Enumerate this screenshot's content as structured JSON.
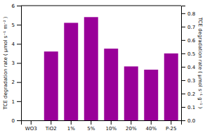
{
  "chart_data": {
    "type": "bar",
    "categories": [
      "WO3",
      "TiO2",
      "1%",
      "5%",
      "10%",
      "20%",
      "40%",
      "P-25"
    ],
    "values": [
      0.0,
      3.6,
      5.1,
      5.4,
      3.75,
      2.82,
      2.65,
      3.5
    ],
    "color": "#990099",
    "ylim": [
      0.0,
      6.0
    ],
    "yticks": [
      0.0,
      1.0,
      2.0,
      3.0,
      4.0,
      5.0,
      6.0
    ],
    "y2lim": [
      0.0,
      0.857
    ],
    "y2ticks": [
      {
        "value": 0,
        "label": "0.0"
      },
      0.1,
      0.2,
      0.3,
      0.4,
      0.5,
      0.6,
      0.7,
      0.8
    ],
    "ylabel": "TCE degradation rate ( μmol s⁻¹ m⁻² )",
    "y2label": "TCE degradation rate ( μmol s⁻¹ g⁻¹ )",
    "grid": false
  }
}
